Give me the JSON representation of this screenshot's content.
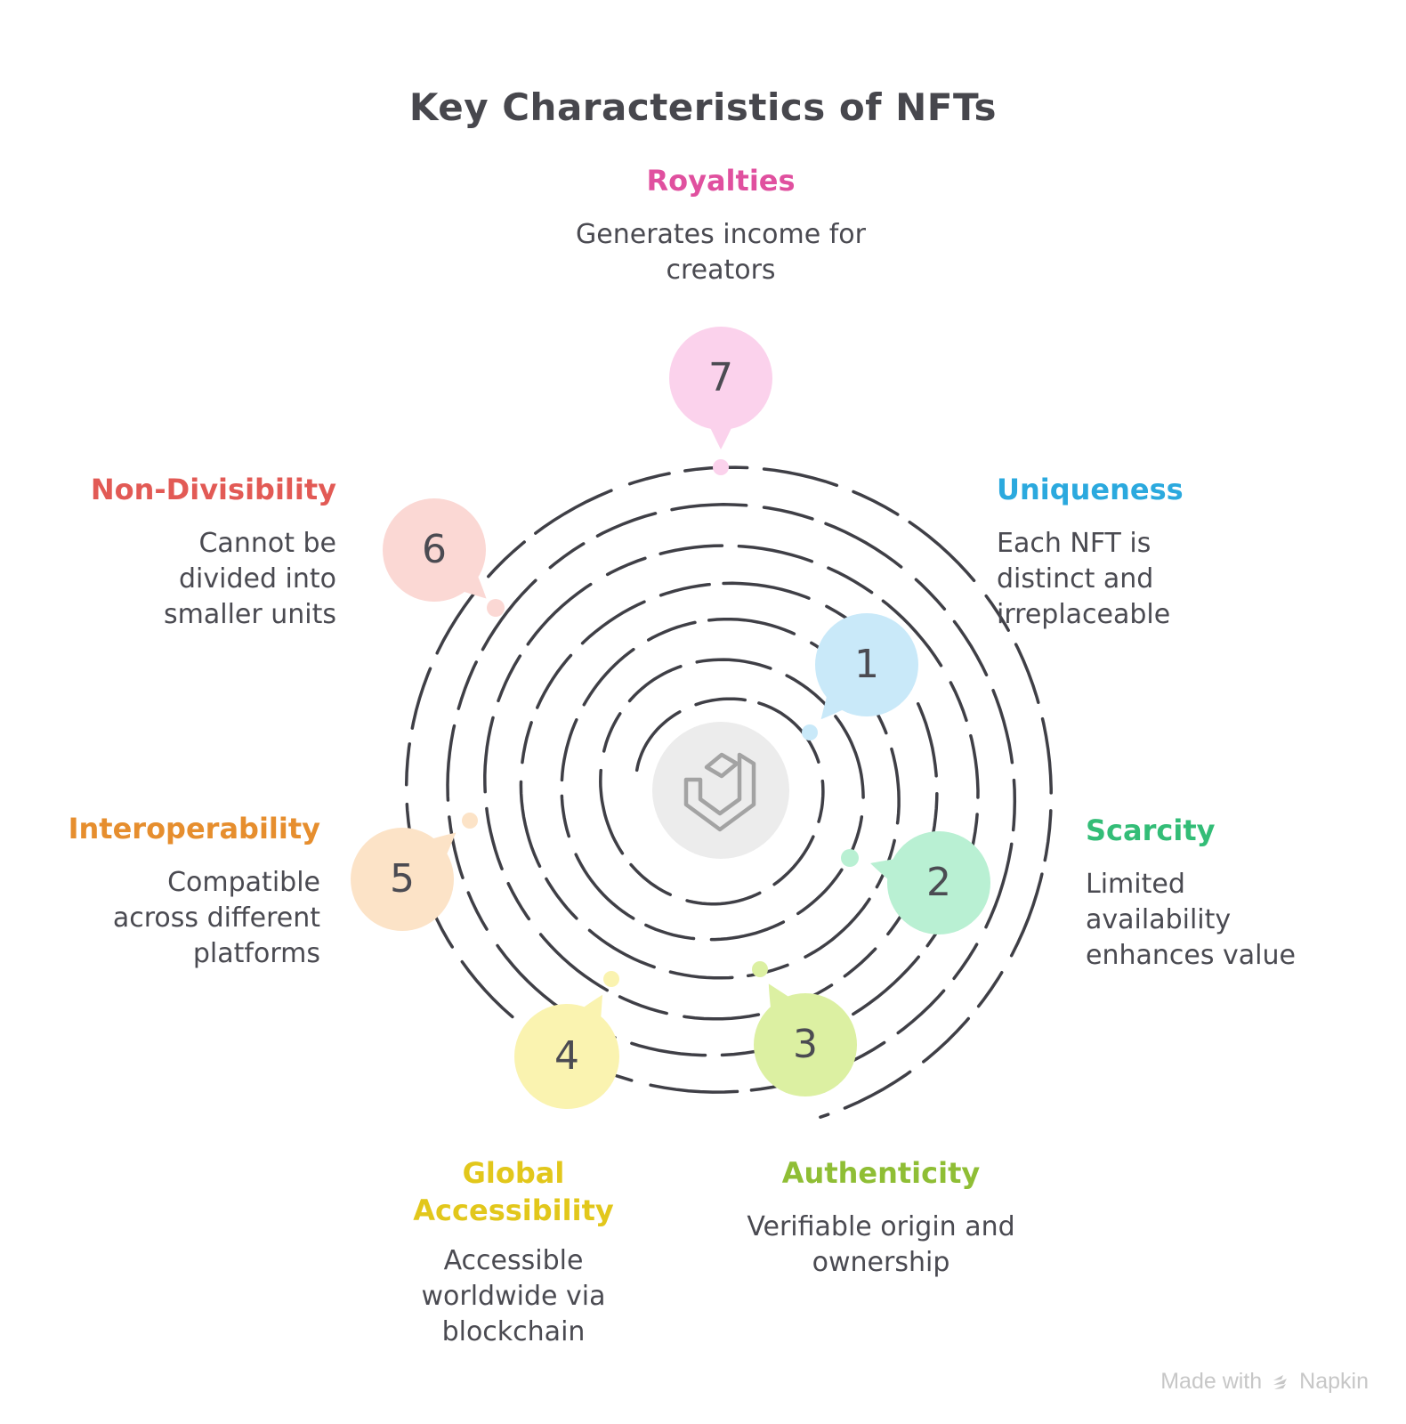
{
  "title": "Key Characteristics of NFTs",
  "diagram": {
    "spiral_color": "#3F3F46",
    "center_circle_color": "#ECECEC",
    "logo_color": "#A3A3A3",
    "number_color": "#4B4B52",
    "title_color": "#47474D",
    "body_text_color": "#4A4A51"
  },
  "items": [
    {
      "number": "1",
      "label": "Uniqueness",
      "label_color": "#2BA9DE",
      "bubble_color": "#C9E9F9",
      "description": "Each NFT is\ndistinct and\nirreplaceable"
    },
    {
      "number": "2",
      "label": "Scarcity",
      "label_color": "#33BD77",
      "bubble_color": "#B9F0D3",
      "description": "Limited\navailability\nenhances value"
    },
    {
      "number": "3",
      "label": "Authenticity",
      "label_color": "#8FBE35",
      "bubble_color": "#DCF0A2",
      "description": "Verifiable origin and\nownership"
    },
    {
      "number": "4",
      "label": "Global Accessibility",
      "label_color": "#E2C71B",
      "bubble_color": "#FAF3B0",
      "description": "Accessible\nworldwide via\nblockchain"
    },
    {
      "number": "5",
      "label": "Interoperability",
      "label_color": "#E68E2E",
      "bubble_color": "#FCE3C7",
      "description": "Compatible\nacross different\nplatforms"
    },
    {
      "number": "6",
      "label": "Non-Divisibility",
      "label_color": "#E25A55",
      "bubble_color": "#FBD8D4",
      "description": "Cannot be\ndivided into\nsmaller units"
    },
    {
      "number": "7",
      "label": "Royalties",
      "label_color": "#E0509F",
      "bubble_color": "#FBD2EC",
      "description": "Generates income for\ncreators"
    }
  ],
  "watermark": {
    "text": "Made with",
    "brand": "Napkin"
  }
}
